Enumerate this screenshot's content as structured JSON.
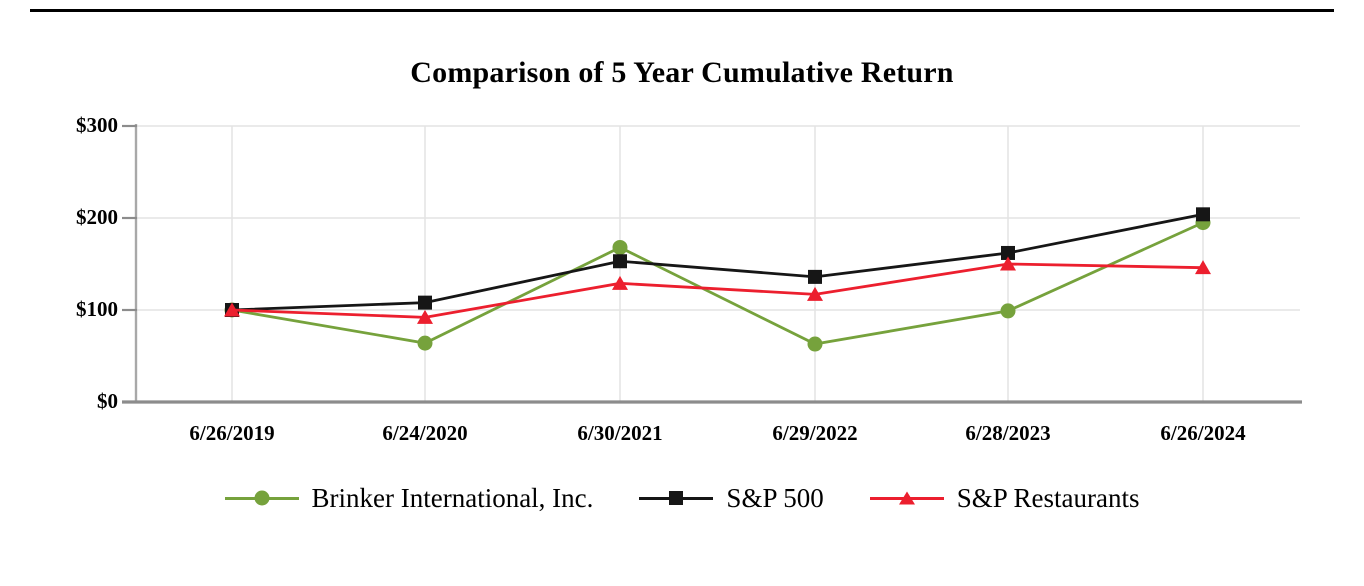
{
  "page": {
    "title": "Comparison of 5 Year Cumulative Return"
  },
  "chart_data": {
    "type": "line",
    "title": "Comparison of 5 Year Cumulative Return",
    "categories": [
      "6/26/2019",
      "6/24/2020",
      "6/30/2021",
      "6/29/2022",
      "6/28/2023",
      "6/26/2024"
    ],
    "series": [
      {
        "name": "Brinker International, Inc.",
        "marker": "circle",
        "color": "#76A23C",
        "values": [
          100,
          64,
          168,
          63,
          99,
          195
        ]
      },
      {
        "name": "S&P 500",
        "marker": "square",
        "color": "#161616",
        "values": [
          100,
          108,
          153,
          136,
          162,
          204
        ]
      },
      {
        "name": "S&P Restaurants",
        "marker": "triangle",
        "color": "#EC1F2E",
        "values": [
          100,
          92,
          129,
          117,
          150,
          146
        ]
      }
    ],
    "y_ticks": [
      "$300",
      "$200",
      "$100",
      "$0"
    ],
    "y_tick_values": [
      300,
      200,
      100,
      0
    ],
    "ylim": [
      0,
      300
    ],
    "grid": true,
    "legend_position": "bottom",
    "axis_colors": {
      "gridline": "#E4E4E4",
      "axis_line": "#A8A8A8",
      "baseline": "#8C8C8C",
      "tick": "#8C8C8C"
    }
  }
}
